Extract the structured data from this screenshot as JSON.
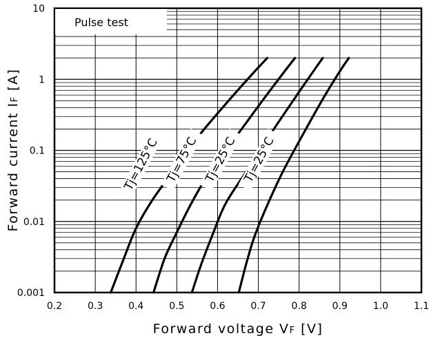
{
  "chart_data": {
    "type": "line",
    "title": "",
    "xlabel": "Forward voltage Vƒ [V]",
    "xlabel_parts": {
      "main": "Forward voltage V",
      "sub": "F",
      "unit": " [V]"
    },
    "ylabel_parts": {
      "main": "Forward current I",
      "sub": "F",
      "unit": " [A]"
    },
    "ylabel": "Forward current IF [A]",
    "x_scale": "linear",
    "y_scale": "log",
    "xlim": [
      0.2,
      1.1
    ],
    "ylim": [
      0.001,
      10
    ],
    "x_ticks": [
      "0.2",
      "0.3",
      "0.4",
      "0.5",
      "0.6",
      "0.7",
      "0.8",
      "0.9",
      "1.0",
      "1.1"
    ],
    "x_tick_values": [
      0.2,
      0.3,
      0.4,
      0.5,
      0.6,
      0.7,
      0.8,
      0.9,
      1.0,
      1.1
    ],
    "y_ticks": [
      "0.001",
      "0.01",
      "0.1",
      "1",
      "10"
    ],
    "y_tick_values": [
      0.001,
      0.01,
      0.1,
      1,
      10
    ],
    "grid": true,
    "annotation": "Pulse test",
    "series": [
      {
        "name": "Tj=125°C",
        "x": [
          0.338,
          0.37,
          0.4,
          0.44,
          0.49,
          0.55,
          0.62,
          0.68,
          0.722
        ],
        "y": [
          0.001,
          0.003,
          0.008,
          0.02,
          0.05,
          0.15,
          0.45,
          1.1,
          2.0
        ]
      },
      {
        "name": "Tj=75°C",
        "x": [
          0.443,
          0.47,
          0.5,
          0.54,
          0.59,
          0.65,
          0.71,
          0.76,
          0.79
        ],
        "y": [
          0.001,
          0.003,
          0.007,
          0.02,
          0.06,
          0.17,
          0.5,
          1.2,
          2.0
        ]
      },
      {
        "name": "Tj=25°C",
        "x": [
          0.537,
          0.56,
          0.59,
          0.62,
          0.67,
          0.73,
          0.79,
          0.835,
          0.858
        ],
        "y": [
          0.001,
          0.0025,
          0.007,
          0.018,
          0.05,
          0.17,
          0.55,
          1.3,
          2.0
        ]
      },
      {
        "name": "Tj=25°C",
        "x": [
          0.652,
          0.67,
          0.69,
          0.72,
          0.76,
          0.81,
          0.86,
          0.9,
          0.922
        ],
        "y": [
          0.001,
          0.0025,
          0.006,
          0.016,
          0.05,
          0.17,
          0.55,
          1.3,
          2.0
        ]
      }
    ],
    "series_labels": [
      "Tj=125°C",
      "Tj=75°C",
      "Tj=25°C",
      "Tj=25°C"
    ],
    "label_anchor_x": [
      0.42,
      0.52,
      0.615,
      0.71
    ],
    "label_anchor_y": [
      0.06,
      0.07,
      0.07,
      0.07
    ]
  }
}
